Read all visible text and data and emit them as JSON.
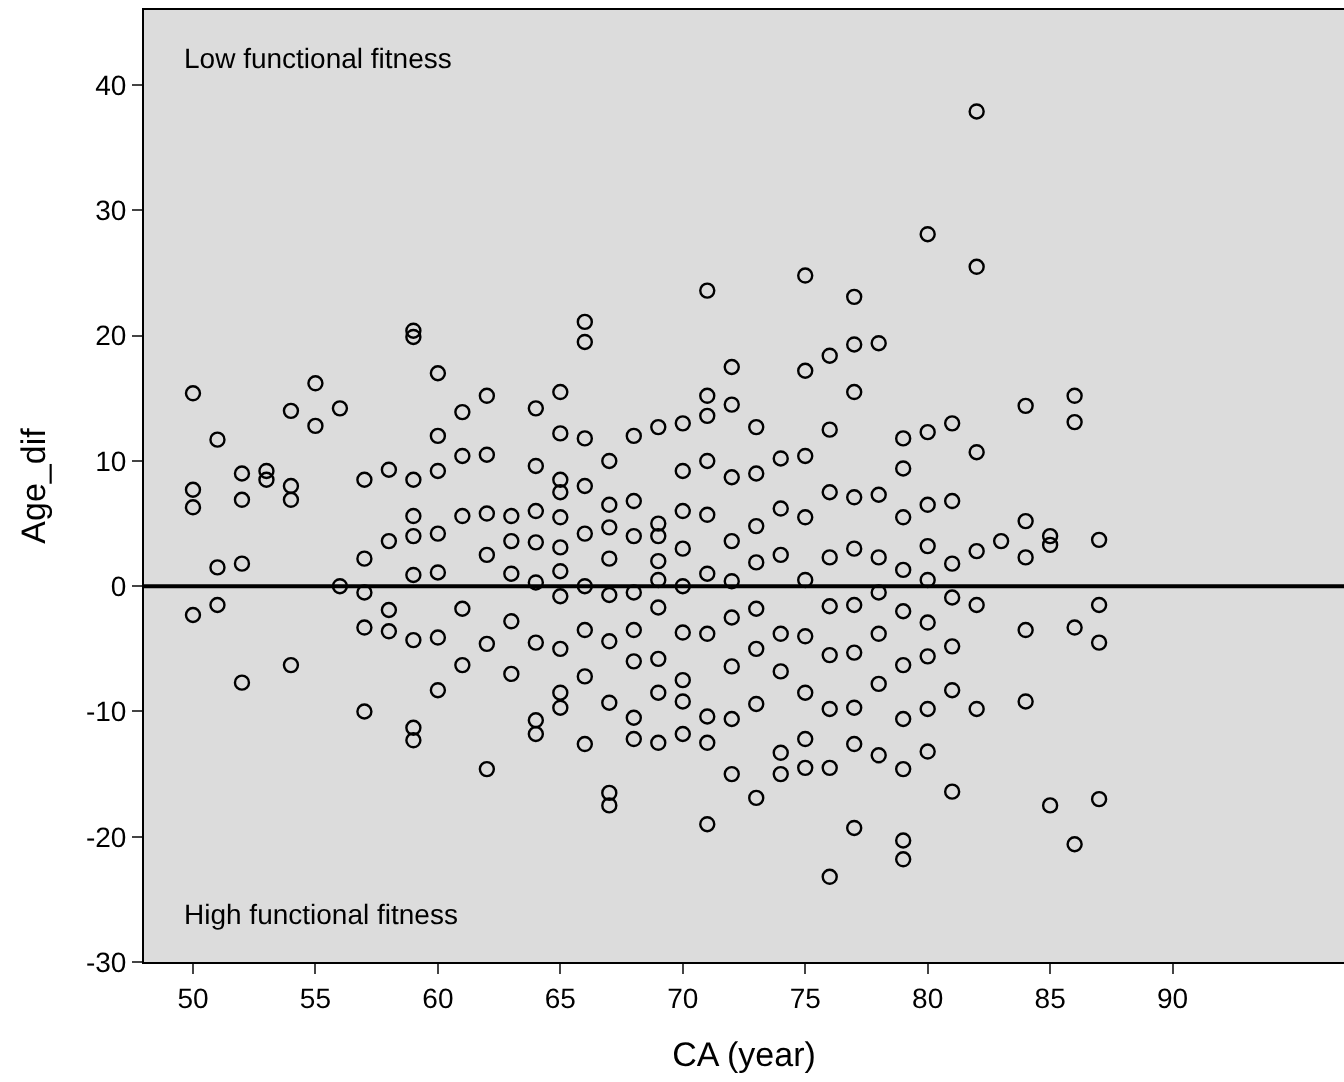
{
  "chart_data": {
    "type": "scatter",
    "xlabel": "CA (year)",
    "ylabel": "Age_dif",
    "annotations": [
      "Low functional fitness",
      "High functional fitness"
    ],
    "x": [
      50,
      50,
      50,
      50,
      51,
      51,
      51,
      52,
      52,
      52,
      52,
      53,
      53,
      54,
      54,
      54,
      54,
      55,
      55,
      56,
      56,
      57,
      57,
      57,
      57,
      57,
      58,
      58,
      58,
      58,
      59,
      59,
      59,
      59,
      59,
      59,
      59,
      59,
      59,
      60,
      60,
      60,
      60,
      60,
      60,
      60,
      61,
      61,
      61,
      61,
      61,
      62,
      62,
      62,
      62,
      62,
      62,
      63,
      63,
      63,
      63,
      63,
      64,
      64,
      64,
      64,
      64,
      64,
      64,
      64,
      65,
      65,
      65,
      65,
      65,
      65,
      65,
      65,
      65,
      65,
      65,
      66,
      66,
      66,
      66,
      66,
      66,
      66,
      66,
      66,
      67,
      67,
      67,
      67,
      67,
      67,
      67,
      67,
      67,
      68,
      68,
      68,
      68,
      68,
      68,
      68,
      68,
      69,
      69,
      69,
      69,
      69,
      69,
      69,
      69,
      69,
      70,
      70,
      70,
      70,
      70,
      70,
      70,
      70,
      70,
      71,
      71,
      71,
      71,
      71,
      71,
      71,
      71,
      71,
      71,
      72,
      72,
      72,
      72,
      72,
      72,
      72,
      72,
      72,
      73,
      73,
      73,
      73,
      73,
      73,
      73,
      73,
      74,
      74,
      74,
      74,
      74,
      74,
      74,
      75,
      75,
      75,
      75,
      75,
      75,
      75,
      75,
      75,
      76,
      76,
      76,
      76,
      76,
      76,
      76,
      76,
      76,
      77,
      77,
      77,
      77,
      77,
      77,
      77,
      77,
      77,
      77,
      78,
      78,
      78,
      78,
      78,
      78,
      78,
      79,
      79,
      79,
      79,
      79,
      79,
      79,
      79,
      79,
      79,
      80,
      80,
      80,
      80,
      80,
      80,
      80,
      80,
      80,
      81,
      81,
      81,
      81,
      81,
      81,
      81,
      82,
      82,
      82,
      82,
      82,
      82,
      83,
      84,
      84,
      84,
      84,
      84,
      85,
      85,
      85,
      86,
      86,
      86,
      86,
      87,
      87,
      87,
      87
    ],
    "series": [
      {
        "color": "#000000",
        "values": [
          15.4,
          7.7,
          6.3,
          -2.3,
          11.7,
          1.5,
          -1.5,
          9,
          6.9,
          1.8,
          -7.7,
          9.2,
          8.5,
          14,
          8,
          6.9,
          -6.3,
          16.2,
          12.8,
          14.2,
          0,
          8.5,
          2.2,
          -0.5,
          -3.3,
          -10,
          9.3,
          3.6,
          -1.9,
          -3.6,
          20.4,
          19.9,
          8.5,
          5.6,
          4,
          0.9,
          -4.3,
          -11.3,
          -12.3,
          17,
          12,
          9.2,
          4.2,
          1.1,
          -4.1,
          -8.3,
          13.9,
          10.4,
          5.6,
          -1.8,
          -6.3,
          15.2,
          10.5,
          5.8,
          2.5,
          -4.6,
          -14.6,
          5.6,
          3.6,
          1,
          -2.8,
          -7,
          14.2,
          9.6,
          6,
          3.5,
          0.3,
          -4.5,
          -10.7,
          -11.8,
          15.5,
          12.2,
          8.5,
          7.5,
          5.5,
          3.1,
          1.2,
          -0.8,
          -5,
          -8.5,
          -9.7,
          21.1,
          19.5,
          11.8,
          8,
          4.2,
          0,
          -3.5,
          -7.2,
          -12.6,
          10,
          6.5,
          4.7,
          2.2,
          -0.7,
          -4.4,
          -9.3,
          -16.5,
          -17.5,
          12,
          6.8,
          4,
          -0.5,
          -3.5,
          -6,
          -10.5,
          -12.2,
          12.7,
          5,
          4,
          2,
          0.5,
          -1.7,
          -5.8,
          -8.5,
          -12.5,
          13,
          9.2,
          6,
          3,
          0,
          -3.7,
          -7.5,
          -9.2,
          -11.8,
          23.6,
          15.2,
          13.6,
          10,
          5.7,
          1,
          -3.8,
          -10.4,
          -12.5,
          -19,
          17.5,
          14.5,
          8.7,
          3.6,
          0.4,
          -2.5,
          -6.4,
          -10.6,
          -15,
          12.7,
          9,
          4.8,
          1.9,
          -1.8,
          -5,
          -9.4,
          -16.9,
          10.2,
          6.2,
          2.5,
          -3.8,
          -6.8,
          -13.3,
          -15,
          24.8,
          17.2,
          10.4,
          5.5,
          0.5,
          -4,
          -8.5,
          -12.2,
          -14.5,
          18.4,
          12.5,
          7.5,
          2.3,
          -1.6,
          -5.5,
          -9.8,
          -14.5,
          -23.2,
          23.1,
          19.3,
          15.5,
          7.1,
          3,
          -1.5,
          -5.3,
          -9.7,
          -12.6,
          -19.3,
          19.4,
          7.3,
          2.3,
          -0.5,
          -3.8,
          -7.8,
          -13.5,
          11.8,
          9.4,
          5.5,
          1.3,
          -2,
          -6.3,
          -10.6,
          -14.6,
          -20.3,
          -21.8,
          28.1,
          12.3,
          6.5,
          3.2,
          0.5,
          -2.9,
          -5.6,
          -9.8,
          -13.2,
          13,
          6.8,
          1.8,
          -0.9,
          -4.8,
          -8.3,
          -16.4,
          37.9,
          25.5,
          10.7,
          2.8,
          -1.5,
          -9.8,
          3.6,
          14.4,
          5.2,
          2.3,
          -3.5,
          -9.2,
          4,
          3.3,
          -17.5,
          15.2,
          13.1,
          -3.3,
          -20.6,
          3.7,
          -1.5,
          -4.5,
          -17
        ]
      }
    ],
    "xlim": [
      48,
      97
    ],
    "ylim": [
      -30,
      46
    ],
    "xticks": [
      50,
      55,
      60,
      65,
      70,
      75,
      80,
      85,
      90
    ],
    "yticks": [
      -30,
      -20,
      -10,
      0,
      10,
      20,
      30,
      40
    ],
    "ref_lines": [
      {
        "axis": "y",
        "value": 0,
        "color": "#000000"
      }
    ],
    "marker": "circle",
    "grid": false
  }
}
